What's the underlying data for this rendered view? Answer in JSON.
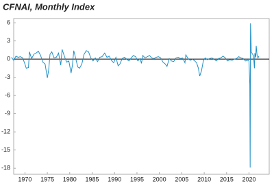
{
  "chart_data": {
    "type": "line",
    "title": "CFNAI, Monthly Index",
    "color": "#1f8fc6",
    "x": [
      1967.0,
      1967.5,
      1968.0,
      1968.5,
      1969.0,
      1969.5,
      1970.0,
      1970.3,
      1970.8,
      1971.0,
      1971.5,
      1972.0,
      1972.5,
      1973.0,
      1973.5,
      1974.0,
      1974.5,
      1975.0,
      1975.3,
      1975.6,
      1976.0,
      1976.5,
      1977.0,
      1977.5,
      1978.0,
      1978.3,
      1978.8,
      1979.3,
      1979.8,
      1980.3,
      1980.6,
      1980.9,
      1981.3,
      1981.8,
      1982.2,
      1982.7,
      1983.2,
      1983.7,
      1984.2,
      1984.7,
      1985.2,
      1985.7,
      1986.2,
      1986.7,
      1987.2,
      1987.8,
      1988.3,
      1988.8,
      1989.3,
      1989.8,
      1990.3,
      1990.8,
      1991.2,
      1991.7,
      1992.2,
      1992.7,
      1993.2,
      1993.7,
      1994.2,
      1994.7,
      1995.2,
      1995.7,
      1996.0,
      1996.3,
      1996.8,
      1997.3,
      1997.8,
      1998.3,
      1998.8,
      1999.3,
      1999.8,
      2000.3,
      2000.8,
      2001.3,
      2001.7,
      2002.2,
      2002.7,
      2003.2,
      2003.7,
      2004.2,
      2004.7,
      2005.2,
      2005.7,
      2005.9,
      2006.4,
      2006.9,
      2007.4,
      2007.9,
      2008.3,
      2008.7,
      2009.0,
      2009.4,
      2009.8,
      2010.2,
      2010.7,
      2011.2,
      2011.7,
      2012.2,
      2012.7,
      2013.2,
      2013.7,
      2014.2,
      2014.7,
      2015.2,
      2015.7,
      2016.2,
      2016.7,
      2017.2,
      2017.7,
      2018.2,
      2018.7,
      2019.2,
      2019.7,
      2020.0,
      2020.17,
      2020.25,
      2020.33,
      2020.42,
      2020.5,
      2020.7,
      2021.0,
      2021.2,
      2021.3,
      2021.5,
      2021.6,
      2021.8,
      2022.0,
      2022.2
    ],
    "values": [
      0.3,
      -0.2,
      0.5,
      0.3,
      0.4,
      0.2,
      -0.8,
      -1.5,
      -1.4,
      1.2,
      0.1,
      0.8,
      1.0,
      1.3,
      0.6,
      -0.5,
      -0.8,
      -3.1,
      -1.8,
      0.8,
      1.2,
      0.2,
      0.3,
      1.0,
      -1.0,
      1.6,
      0.5,
      -0.5,
      -0.3,
      -2.3,
      -1.0,
      1.4,
      0.2,
      -1.3,
      -1.5,
      -0.8,
      0.8,
      1.4,
      1.2,
      0.2,
      -0.3,
      0.2,
      -0.4,
      0.3,
      0.4,
      1.0,
      0.3,
      0.5,
      -0.2,
      -0.6,
      0.3,
      -1.1,
      -0.8,
      0.1,
      0.3,
      0.0,
      -0.3,
      0.2,
      0.6,
      0.4,
      -0.3,
      0.1,
      -0.7,
      0.6,
      0.2,
      0.4,
      0.6,
      0.2,
      0.1,
      0.3,
      0.4,
      0.2,
      -0.5,
      -0.8,
      -1.2,
      0.1,
      -0.3,
      -0.4,
      0.2,
      0.3,
      0.1,
      0.2,
      -0.6,
      0.7,
      0.1,
      -0.2,
      0.0,
      -0.3,
      -0.6,
      -1.5,
      -2.8,
      -1.9,
      -0.3,
      0.2,
      -0.1,
      0.1,
      0.2,
      0.0,
      -0.3,
      0.1,
      0.2,
      0.5,
      0.2,
      -0.3,
      -0.1,
      -0.2,
      0.0,
      0.1,
      0.4,
      0.2,
      0.1,
      -0.3,
      -0.2,
      -0.3,
      -4.2,
      -17.9,
      5.9,
      4.0,
      1.2,
      0.9,
      0.6,
      -1.5,
      1.0,
      0.3,
      2.2,
      0.6,
      0.2,
      0.5
    ],
    "xlim": [
      1967.5,
      2024.5
    ],
    "xticks": [
      1970,
      1975,
      1980,
      1985,
      1990,
      1995,
      2000,
      2005,
      2010,
      2015,
      2020
    ],
    "ylim": [
      -19,
      6.7
    ],
    "yticks": [
      6,
      3,
      0,
      -3,
      -6,
      -9,
      -12,
      -15,
      -18
    ]
  }
}
